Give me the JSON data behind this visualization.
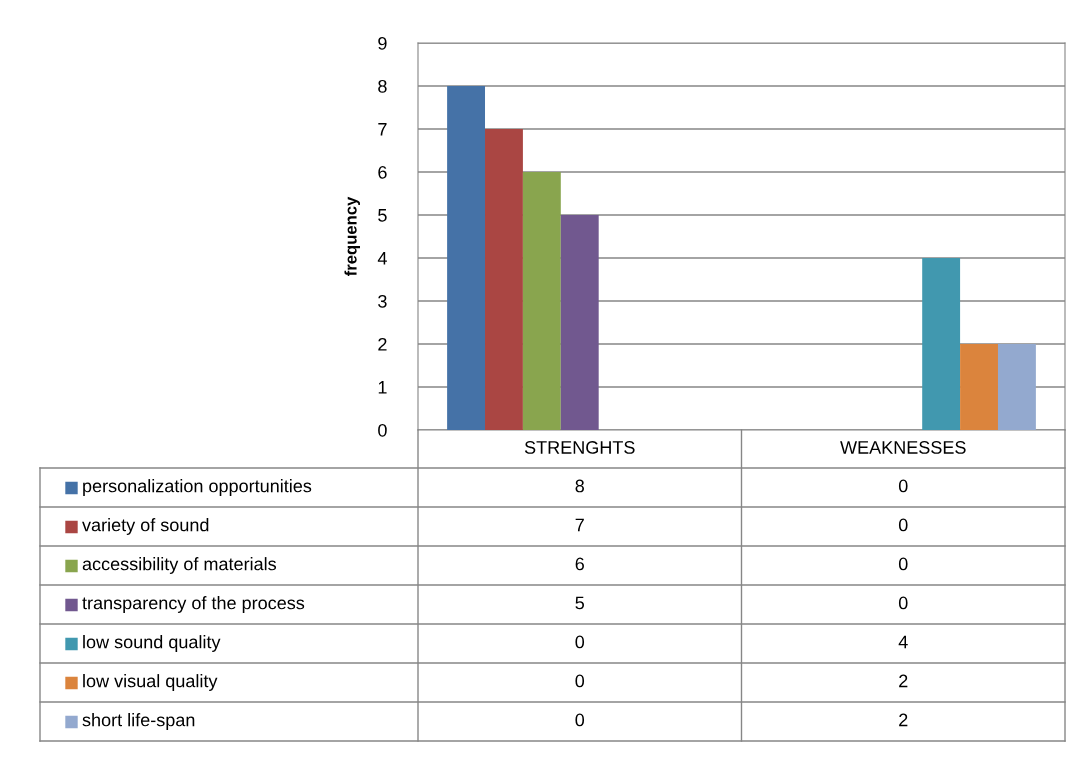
{
  "chart_data": {
    "type": "bar",
    "ylabel": "frequency",
    "categories": [
      "STRENGHTS",
      "WEAKNESSES"
    ],
    "series": [
      {
        "name": "personalization opportunities",
        "color": "#4572a7",
        "values": [
          8,
          0
        ]
      },
      {
        "name": "variety of sound",
        "color": "#aa4643",
        "values": [
          7,
          0
        ]
      },
      {
        "name": "accessibility of materials",
        "color": "#89a54e",
        "values": [
          6,
          0
        ]
      },
      {
        "name": "transparency of the process",
        "color": "#71588f",
        "values": [
          5,
          0
        ]
      },
      {
        "name": "low sound quality",
        "color": "#4198af",
        "values": [
          0,
          4
        ]
      },
      {
        "name": "low visual quality",
        "color": "#db843d",
        "values": [
          0,
          2
        ]
      },
      {
        "name": "short life-span",
        "color": "#93a9cf",
        "values": [
          0,
          2
        ]
      }
    ],
    "ylim": [
      0,
      9
    ],
    "yticks": [
      0,
      1,
      2,
      3,
      4,
      5,
      6,
      7,
      8,
      9
    ],
    "grid": "y",
    "legend": "bottom",
    "data_labels": true
  }
}
